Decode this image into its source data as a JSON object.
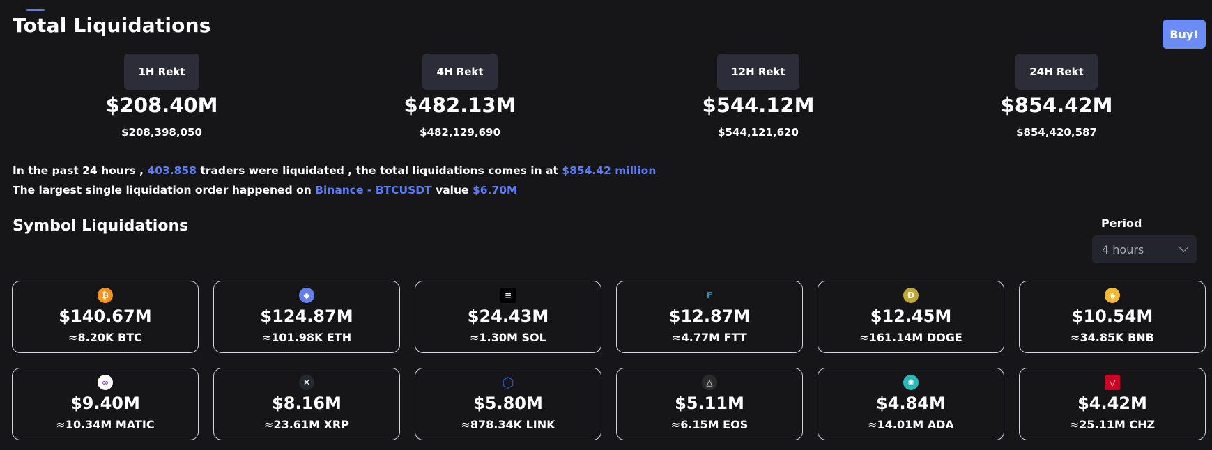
{
  "header": {
    "title": "Total Liquidations",
    "buy_label": "Buy!"
  },
  "totals": [
    {
      "label": "1H Rekt",
      "value": "$208.40M",
      "exact": "$208,398,050"
    },
    {
      "label": "4H Rekt",
      "value": "$482.13M",
      "exact": "$482,129,690"
    },
    {
      "label": "12H Rekt",
      "value": "$544.12M",
      "exact": "$544,121,620"
    },
    {
      "label": "24H Rekt",
      "value": "$854.42M",
      "exact": "$854,420,587"
    }
  ],
  "summary": {
    "line1_prefix": "In the past 24 hours ,",
    "traders": "403.858",
    "line1_mid": "traders were liquidated , the total liquidations comes in at",
    "total": "$854.42 million",
    "line2_prefix": "The largest single liquidation order happened on",
    "exchange_pair": "Binance - BTCUSDT",
    "line2_mid": "value",
    "largest_value": "$6.70M"
  },
  "symbols_section": {
    "title": "Symbol Liquidations",
    "period_label": "Period",
    "period_value": "4 hours"
  },
  "colors": {
    "accent": "#5b7cfa",
    "buy": "#6b8cf7",
    "background": "#161619"
  },
  "symbols": [
    {
      "icon": "bitcoin-icon",
      "glyph": "₿",
      "color": "#f7931a",
      "amount": "$140.67M",
      "qty": "≈8.20K BTC"
    },
    {
      "icon": "ethereum-icon",
      "glyph": "◆",
      "color": "#627eea",
      "amount": "$124.87M",
      "qty": "≈101.98K ETH"
    },
    {
      "icon": "solana-icon",
      "glyph": "≡",
      "color": "#000000",
      "amount": "$24.43M",
      "qty": "≈1.30M SOL"
    },
    {
      "icon": "ftx-icon",
      "glyph": "F",
      "color": "#02a6c2",
      "amount": "$12.87M",
      "qty": "≈4.77M FTT"
    },
    {
      "icon": "dogecoin-icon",
      "glyph": "Ð",
      "color": "#c2a633",
      "amount": "$12.45M",
      "qty": "≈161.14M DOGE"
    },
    {
      "icon": "bnb-icon",
      "glyph": "◈",
      "color": "#f3ba2f",
      "amount": "$10.54M",
      "qty": "≈34.85K BNB"
    },
    {
      "icon": "polygon-icon",
      "glyph": "∞",
      "color": "#ffffff",
      "amount": "$9.40M",
      "qty": "≈10.34M MATIC"
    },
    {
      "icon": "xrp-icon",
      "glyph": "✕",
      "color": "#23292f",
      "amount": "$8.16M",
      "qty": "≈23.61M XRP"
    },
    {
      "icon": "chainlink-icon",
      "glyph": "⬡",
      "color": "#2a5ada",
      "amount": "$5.80M",
      "qty": "≈878.34K LINK"
    },
    {
      "icon": "eos-icon",
      "glyph": "△",
      "color": "#2b2b2b",
      "amount": "$5.11M",
      "qty": "≈6.15M EOS"
    },
    {
      "icon": "cardano-icon",
      "glyph": "✺",
      "color": "#2bb8b8",
      "amount": "$4.84M",
      "qty": "≈14.01M ADA"
    },
    {
      "icon": "chiliz-icon",
      "glyph": "▽",
      "color": "#cd0124",
      "amount": "$4.42M",
      "qty": "≈25.11M CHZ"
    }
  ]
}
